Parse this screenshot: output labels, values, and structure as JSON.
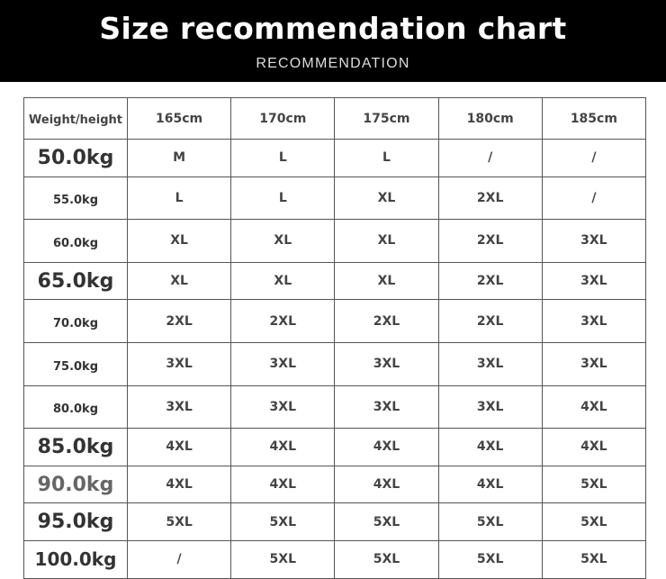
{
  "header": {
    "title": "Size recommendation chart",
    "subtitle": "RECOMMENDATION"
  },
  "table": {
    "corner": "Weight/height",
    "heights": [
      "165cm",
      "170cm",
      "175cm",
      "180cm",
      "185cm"
    ],
    "rows": [
      {
        "weight": "50.0kg",
        "sizes": [
          "M",
          "L",
          "L",
          "/",
          "/"
        ]
      },
      {
        "weight": "55.0kg",
        "sizes": [
          "L",
          "L",
          "XL",
          "2XL",
          "/"
        ]
      },
      {
        "weight": "60.0kg",
        "sizes": [
          "XL",
          "XL",
          "XL",
          "2XL",
          "3XL"
        ]
      },
      {
        "weight": "65.0kg",
        "sizes": [
          "XL",
          "XL",
          "XL",
          "2XL",
          "3XL"
        ]
      },
      {
        "weight": "70.0kg",
        "sizes": [
          "2XL",
          "2XL",
          "2XL",
          "2XL",
          "3XL"
        ]
      },
      {
        "weight": "75.0kg",
        "sizes": [
          "3XL",
          "3XL",
          "3XL",
          "3XL",
          "3XL"
        ]
      },
      {
        "weight": "80.0kg",
        "sizes": [
          "3XL",
          "3XL",
          "3XL",
          "3XL",
          "4XL"
        ]
      },
      {
        "weight": "85.0kg",
        "sizes": [
          "4XL",
          "4XL",
          "4XL",
          "4XL",
          "4XL"
        ]
      },
      {
        "weight": "90.0kg",
        "sizes": [
          "4XL",
          "4XL",
          "4XL",
          "4XL",
          "5XL"
        ]
      },
      {
        "weight": "95.0kg",
        "sizes": [
          "5XL",
          "5XL",
          "5XL",
          "5XL",
          "5XL"
        ]
      },
      {
        "weight": "100.0kg",
        "sizes": [
          "/",
          "5XL",
          "5XL",
          "5XL",
          "5XL"
        ]
      }
    ]
  }
}
